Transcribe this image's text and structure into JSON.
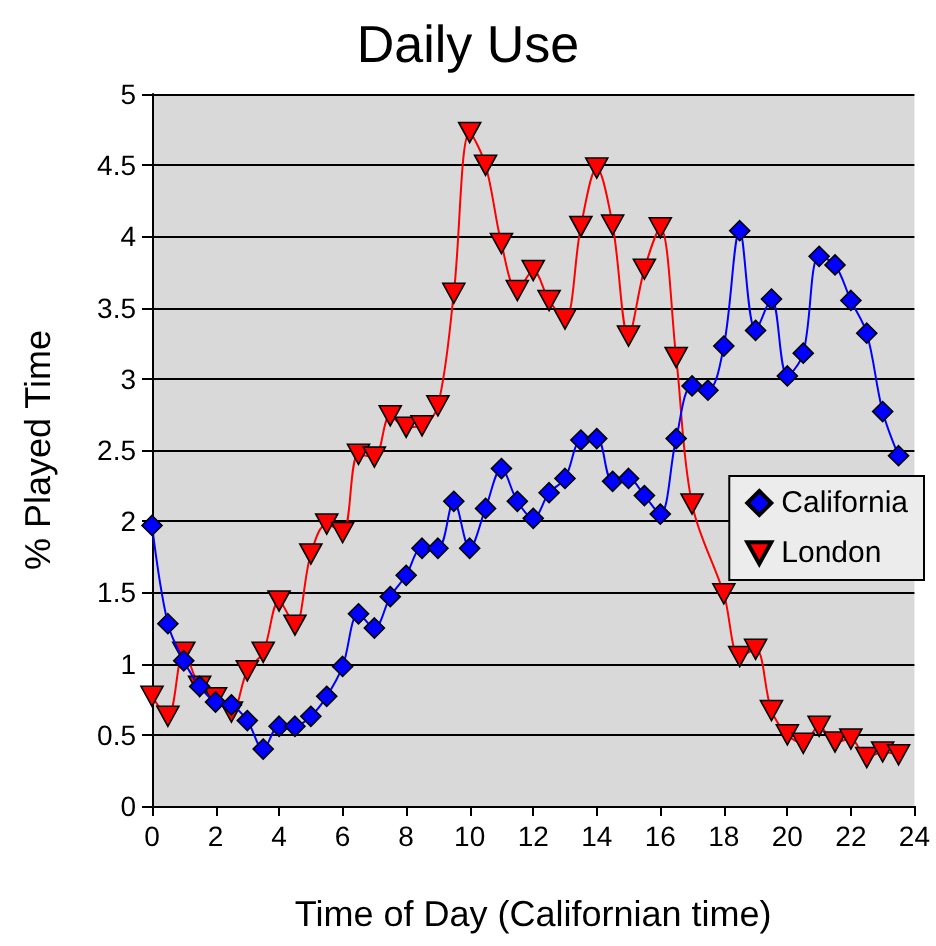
{
  "chart_data": {
    "type": "line",
    "title": "Daily Use",
    "xlabel": "Time of Day (Californian time)",
    "ylabel": "% Played Time",
    "x": [
      0,
      0.5,
      1,
      1.5,
      2,
      2.5,
      3,
      3.5,
      4,
      4.5,
      5,
      5.5,
      6,
      6.5,
      7,
      7.5,
      8,
      8.5,
      9,
      9.5,
      10,
      10.5,
      11,
      11.5,
      12,
      12.5,
      13,
      13.5,
      14,
      14.5,
      15,
      15.5,
      16,
      16.5,
      17,
      17.5,
      18,
      18.5,
      19,
      19.5,
      20,
      20.5,
      21,
      21.5,
      22,
      22.5,
      23,
      23.5
    ],
    "series": [
      {
        "name": "California",
        "color": "#0000ff",
        "marker": "diamond",
        "values": [
          1.97,
          1.28,
          1.02,
          0.84,
          0.73,
          0.71,
          0.6,
          0.4,
          0.56,
          0.56,
          0.63,
          0.77,
          0.98,
          1.35,
          1.25,
          1.47,
          1.62,
          1.81,
          1.81,
          2.14,
          1.81,
          2.09,
          2.37,
          2.14,
          2.02,
          2.2,
          2.3,
          2.57,
          2.58,
          2.28,
          2.3,
          2.18,
          2.05,
          2.58,
          2.95,
          2.92,
          3.23,
          4.04,
          3.34,
          3.56,
          3.02,
          3.18,
          3.86,
          3.8,
          3.55,
          3.32,
          2.77,
          2.46
        ]
      },
      {
        "name": "London",
        "color": "#ff0000",
        "marker": "triangle",
        "values": [
          0.77,
          0.63,
          1.08,
          0.84,
          0.76,
          0.66,
          0.95,
          1.08,
          1.44,
          1.27,
          1.77,
          1.98,
          1.92,
          2.47,
          2.45,
          2.74,
          2.66,
          2.67,
          2.81,
          3.6,
          4.73,
          4.5,
          3.95,
          3.62,
          3.76,
          3.55,
          3.42,
          4.07,
          4.48,
          4.08,
          3.3,
          3.77,
          4.06,
          3.15,
          2.12,
          null,
          1.49,
          1.05,
          1.1,
          0.67,
          0.5,
          0.44,
          0.56,
          0.45,
          0.47,
          0.34,
          0.38,
          0.36
        ]
      }
    ],
    "xlim": [
      0,
      24
    ],
    "xticks": [
      0,
      2,
      4,
      6,
      8,
      10,
      12,
      14,
      16,
      18,
      20,
      22,
      24
    ],
    "ylim": [
      0,
      5
    ],
    "yticks": [
      0,
      0.5,
      1,
      1.5,
      2,
      2.5,
      3,
      3.5,
      4,
      4.5,
      5
    ],
    "grid": "y",
    "legend": "right"
  }
}
